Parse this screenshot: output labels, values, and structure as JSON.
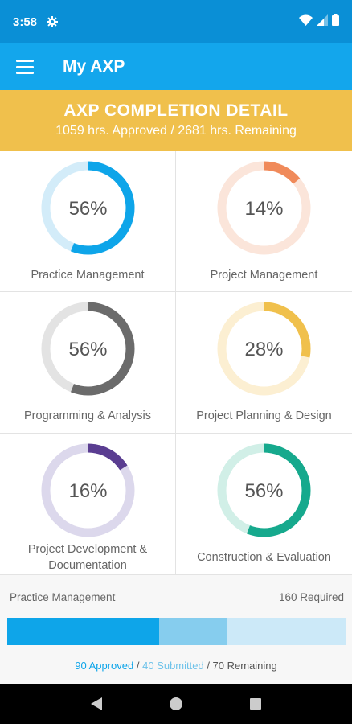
{
  "status_bar": {
    "time": "3:58",
    "icons": [
      "gear-icon",
      "wifi-icon",
      "signal-icon",
      "battery-icon"
    ]
  },
  "app_bar": {
    "title": "My AXP",
    "menu_icon": "hamburger-menu-icon"
  },
  "banner": {
    "title": "AXP COMPLETION DETAIL",
    "subtitle": "1059 hrs. Approved / 2681 hrs. Remaining"
  },
  "areas": [
    {
      "label": "Practice Management",
      "percent_text": "56%",
      "percent": 56,
      "color": "#0ea5e9",
      "track": "#d3ecf9"
    },
    {
      "label": "Project Management",
      "percent_text": "14%",
      "percent": 14,
      "color": "#f08a5a",
      "track": "#fbe5da"
    },
    {
      "label": "Programming & Analysis",
      "percent_text": "56%",
      "percent": 56,
      "color": "#6b6b6b",
      "track": "#e3e3e3"
    },
    {
      "label": "Project Planning & Design",
      "percent_text": "28%",
      "percent": 28,
      "color": "#f0c04c",
      "track": "#fcefd2"
    },
    {
      "label": "Project Development & Documentation",
      "percent_text": "16%",
      "percent": 16,
      "color": "#5a3d91",
      "track": "#dcd8ec"
    },
    {
      "label": "Construction & Evaluation",
      "percent_text": "56%",
      "percent": 56,
      "color": "#16a98d",
      "track": "#d1efe7"
    }
  ],
  "summary": {
    "area": "Practice Management",
    "required": "160 Required",
    "approved": "90 Approved",
    "submitted": "40 Submitted",
    "remaining": "70 Remaining",
    "approved_value": 90,
    "submitted_value": 40,
    "remaining_value": 70,
    "separator": " / "
  },
  "nav": {
    "icons": [
      "back-icon",
      "home-icon",
      "recents-icon"
    ]
  }
}
